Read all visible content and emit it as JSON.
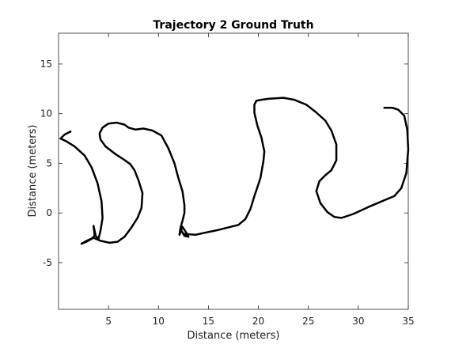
{
  "chart_data": {
    "type": "line",
    "title": "Trajectory 2 Ground Truth",
    "xlabel": "Distance (meters)",
    "ylabel": "Distance (meters)",
    "xlim": [
      0,
      35
    ],
    "ylim": [
      -9.7,
      18.1
    ],
    "xticks": [
      5,
      10,
      15,
      20,
      25,
      30,
      35
    ],
    "yticks": [
      -5,
      0,
      5,
      10,
      15
    ],
    "grid": false,
    "line_color": "#000000",
    "series": [
      {
        "x": [
          1.2,
          0.6,
          0.2,
          0.8,
          1.6,
          2.6,
          3.3,
          3.9,
          4.3,
          4.4,
          4.2,
          4.0,
          3.6,
          3.5,
          3.7,
          3.3,
          2.8,
          2.3,
          2.8,
          3.5,
          4.2,
          5.1,
          5.9,
          6.6,
          7.2,
          7.9,
          8.3,
          8.4,
          8.0,
          7.6,
          7.2,
          6.5,
          5.6,
          4.7,
          4.2,
          4.1,
          4.4,
          5.0,
          5.8,
          6.6,
          7.0,
          7.7,
          8.5,
          9.4,
          10.3,
          11.0,
          11.6,
          12.0,
          12.4,
          12.6,
          12.6,
          12.4,
          12.2,
          12.1,
          12.4,
          12.8,
          13.0,
          12.6,
          12.3,
          12.5,
          13.7,
          14.6,
          16.0,
          17.2,
          18.0,
          18.7,
          19.2,
          19.6,
          20.2,
          20.5,
          20.6,
          20.3,
          19.9,
          19.6,
          19.6,
          19.8,
          20.3,
          21.0,
          22.5,
          23.6,
          24.8,
          25.7,
          26.7,
          27.3,
          27.8,
          27.8,
          27.3,
          26.7,
          26.1,
          25.8,
          26.2,
          26.9,
          27.6,
          28.3,
          29.5,
          31.0,
          32.4,
          33.6,
          34.3,
          34.8,
          35.0,
          34.9,
          34.6,
          34.0,
          33.4,
          32.6
        ],
        "y": [
          8.2,
          7.9,
          7.5,
          7.2,
          6.7,
          5.8,
          4.6,
          3.0,
          1.2,
          -0.5,
          -1.8,
          -2.6,
          -2.2,
          -1.3,
          -2.2,
          -2.6,
          -2.9,
          -3.1,
          -2.8,
          -2.5,
          -2.8,
          -3.0,
          -2.9,
          -2.4,
          -1.6,
          -0.5,
          0.5,
          2.0,
          3.3,
          4.3,
          4.9,
          5.4,
          6.0,
          6.7,
          7.4,
          8.0,
          8.6,
          9.0,
          9.1,
          8.9,
          8.6,
          8.4,
          8.5,
          8.3,
          7.8,
          6.5,
          5.0,
          3.5,
          2.2,
          0.8,
          0.0,
          -0.8,
          -1.5,
          -2.2,
          -1.4,
          -2.0,
          -2.4,
          -2.3,
          -1.8,
          -2.1,
          -2.2,
          -2.0,
          -1.7,
          -1.4,
          -1.2,
          -0.6,
          0.4,
          1.7,
          3.5,
          5.2,
          6.2,
          7.6,
          8.8,
          10.1,
          10.9,
          11.3,
          11.4,
          11.5,
          11.6,
          11.4,
          10.9,
          10.2,
          9.3,
          8.3,
          6.9,
          5.3,
          4.3,
          3.8,
          3.2,
          2.2,
          1.0,
          0.1,
          -0.4,
          -0.5,
          -0.1,
          0.6,
          1.2,
          1.7,
          2.5,
          4.0,
          6.4,
          8.4,
          9.8,
          10.4,
          10.6,
          10.6
        ]
      }
    ]
  }
}
